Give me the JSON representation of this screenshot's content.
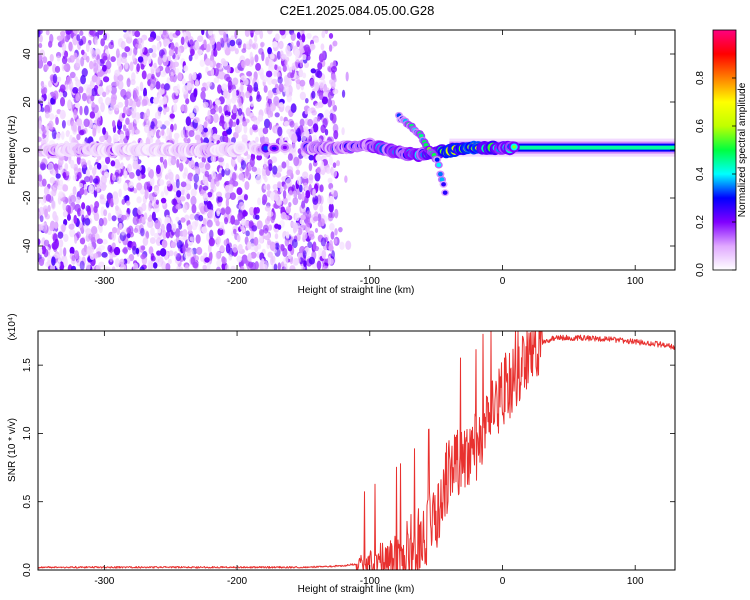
{
  "title": "C2E1.2025.084.05.00.G28",
  "chart_data": [
    {
      "type": "heatmap",
      "xlabel": "Height of straight line (km)",
      "ylabel": "Frequency (Hz)",
      "xlim": [
        -350,
        130
      ],
      "ylim": [
        -50,
        50
      ],
      "xticks": [
        -300,
        -200,
        -100,
        0,
        100
      ],
      "yticks": [
        -40,
        -20,
        0,
        20,
        40
      ],
      "colorbar": {
        "label": "Normalized spectral amplitude",
        "range": [
          0.0,
          1.0
        ],
        "ticks": [
          "0.0",
          "0.2",
          "0.4",
          "0.6",
          "0.8"
        ],
        "colors": [
          "#ffffff",
          "#e0a8ff",
          "#8000ff",
          "#0000ff",
          "#00ffff",
          "#00ff40",
          "#c0ff00",
          "#ffff00",
          "#ff8000",
          "#ff0000",
          "#ff0080"
        ]
      },
      "features": [
        {
          "x": [
            -350,
            -300,
            -250,
            -200,
            -150,
            -120,
            -100,
            -80,
            -60,
            -40,
            -20,
            0,
            50,
            100,
            130
          ],
          "y": [
            0,
            0,
            0,
            0,
            1,
            1,
            2,
            -1,
            -2,
            0,
            1,
            1,
            1,
            1,
            1
          ],
          "amplitude": [
            0.15,
            0.15,
            0.12,
            0.15,
            0.3,
            0.35,
            0.4,
            0.45,
            0.5,
            0.8,
            0.85,
            0.55,
            0.45,
            0.45,
            0.45
          ]
        },
        {
          "x": [
            -78,
            -70,
            -62,
            -55,
            -48,
            -42
          ],
          "y": [
            14,
            10,
            6,
            0,
            -6,
            -21
          ],
          "amplitude": [
            0.35,
            0.4,
            0.45,
            0.5,
            0.35,
            0.2
          ]
        }
      ]
    },
    {
      "type": "line",
      "xlabel": "Height of straight line (km)",
      "ylabel": "SNR (10 * v/v)",
      "yscale_label": "(x10⁴)",
      "xlim": [
        -350,
        130
      ],
      "ylim": [
        0,
        1.75
      ],
      "xticks": [
        -300,
        -200,
        -100,
        0,
        100
      ],
      "yticks": [
        "0.0",
        "0.5",
        "1.0",
        "1.5"
      ],
      "series": [
        {
          "color": "#e8312f",
          "x": [
            -350,
            -300,
            -250,
            -200,
            -150,
            -120,
            -100,
            -80,
            -70,
            -60,
            -50,
            -40,
            -30,
            -20,
            -10,
            0,
            10,
            20,
            30,
            40,
            60,
            80,
            100,
            120,
            130
          ],
          "y": [
            0.02,
            0.02,
            0.02,
            0.02,
            0.02,
            0.03,
            0.06,
            0.12,
            0.18,
            0.25,
            0.4,
            0.75,
            0.85,
            0.9,
            1.1,
            1.3,
            1.45,
            1.6,
            1.67,
            1.7,
            1.7,
            1.69,
            1.67,
            1.65,
            1.63
          ]
        }
      ]
    }
  ]
}
